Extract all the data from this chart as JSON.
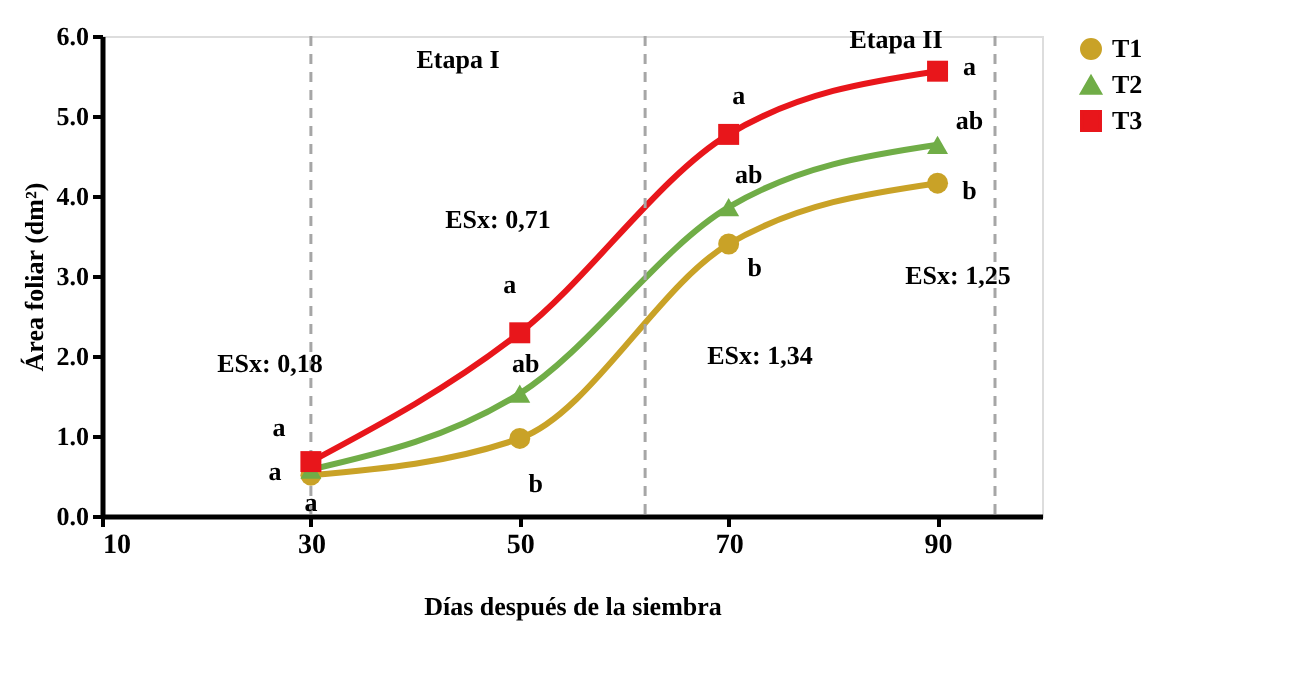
{
  "chart_data": {
    "type": "line",
    "xlabel": "Días después de la siembra",
    "ylabel": "Área foliar (dm²)",
    "x": [
      30,
      50,
      70,
      90
    ],
    "series": [
      {
        "name": "T1",
        "color": "#c9a227",
        "marker": "circle",
        "values": [
          0.51,
          0.97,
          3.4,
          4.16
        ]
      },
      {
        "name": "T2",
        "color": "#70ad47",
        "marker": "triangle",
        "values": [
          0.58,
          1.53,
          3.86,
          4.64
        ]
      },
      {
        "name": "T3",
        "color": "#e8161b",
        "marker": "square",
        "values": [
          0.68,
          2.29,
          4.77,
          5.56
        ]
      }
    ],
    "xlim": [
      10,
      100
    ],
    "xticks": [
      10,
      30,
      50,
      70,
      90
    ],
    "ylim": [
      0,
      6
    ],
    "yticks": [
      {
        "value": 0,
        "label": "0.0"
      },
      {
        "value": 1,
        "label": "1.0"
      },
      {
        "value": 2,
        "label": "2.0"
      },
      {
        "value": 3,
        "label": "3.0"
      },
      {
        "value": 4,
        "label": "4.0"
      },
      {
        "value": 5,
        "label": "5.0"
      },
      {
        "value": 6,
        "label": "6.0"
      }
    ],
    "ref_lines": [
      {
        "axis": "x",
        "value": 30,
        "color": "#a6a6a6",
        "line_style": "dashed"
      },
      {
        "axis": "x",
        "value": 62,
        "color": "#a6a6a6",
        "line_style": "dashed"
      },
      {
        "axis": "x",
        "value": 95.5,
        "color": "#a6a6a6",
        "line_style": "dashed"
      }
    ],
    "annotations": [
      "Etapa I",
      "Etapa II",
      "ESx: 0,18",
      "ESx: 0,71",
      "ESx: 1,34",
      "ESx: 1,25",
      {
        "text": "a",
        "x": 30,
        "y": 0.68
      },
      {
        "text": "a",
        "x": 30,
        "y": 0.58
      },
      {
        "text": "a",
        "x": 30,
        "y": 0.51
      },
      {
        "text": "a",
        "x": 50,
        "y": 2.29
      },
      {
        "text": "ab",
        "x": 50,
        "y": 1.53
      },
      {
        "text": "b",
        "x": 50,
        "y": 0.97
      },
      {
        "text": "a",
        "x": 70,
        "y": 4.77
      },
      {
        "text": "ab",
        "x": 70,
        "y": 3.86
      },
      {
        "text": "b",
        "x": 70,
        "y": 3.4
      },
      {
        "text": "a",
        "x": 90,
        "y": 5.56
      },
      {
        "text": "ab",
        "x": 90,
        "y": 4.64
      },
      {
        "text": "b",
        "x": 90,
        "y": 4.16
      }
    ],
    "legend": "right",
    "grid": false,
    "line_style": "solid"
  }
}
